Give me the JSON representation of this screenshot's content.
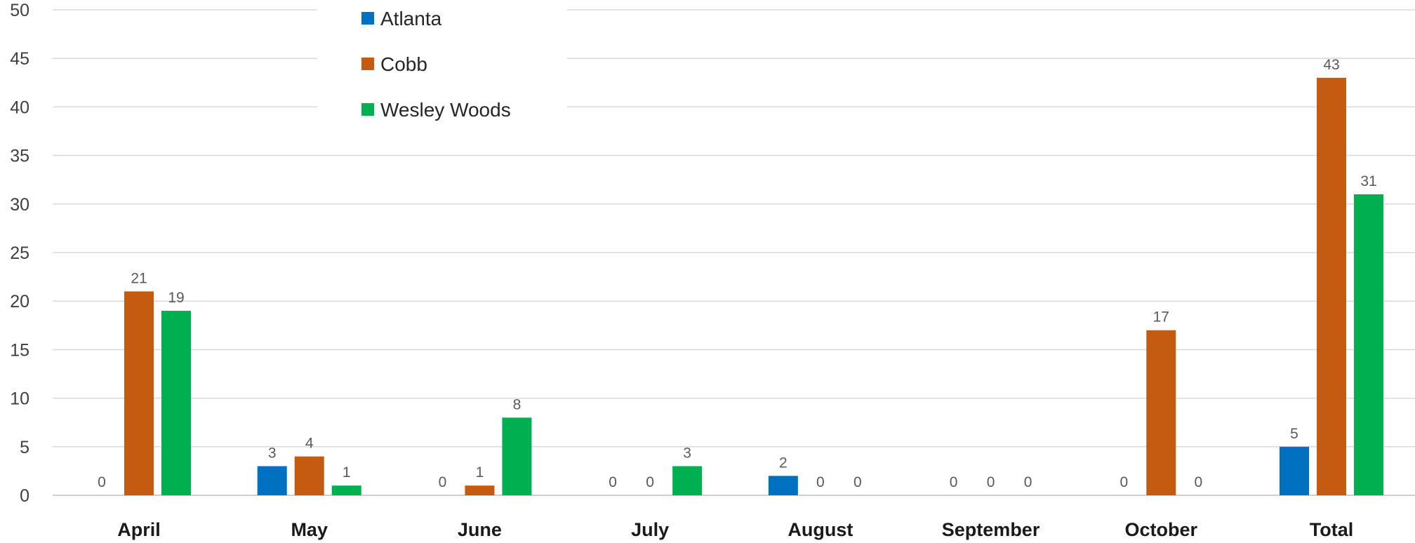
{
  "chart_data": {
    "type": "bar",
    "categories": [
      "April",
      "May",
      "June",
      "July",
      "August",
      "September",
      "October",
      "Total"
    ],
    "series": [
      {
        "name": "Atlanta",
        "color": "#0070C0",
        "values": [
          0,
          3,
          0,
          0,
          2,
          0,
          0,
          5
        ]
      },
      {
        "name": "Cobb",
        "color": "#C55A11",
        "values": [
          21,
          4,
          1,
          0,
          0,
          0,
          17,
          43
        ]
      },
      {
        "name": "Wesley Woods",
        "color": "#00B050",
        "values": [
          19,
          1,
          8,
          3,
          0,
          0,
          0,
          31
        ]
      }
    ],
    "ylim": [
      0,
      50
    ],
    "yticks": [
      0,
      5,
      10,
      15,
      20,
      25,
      30,
      35,
      40,
      45,
      50
    ],
    "grid": true,
    "data_labels": true,
    "legend_position": "top-left"
  }
}
